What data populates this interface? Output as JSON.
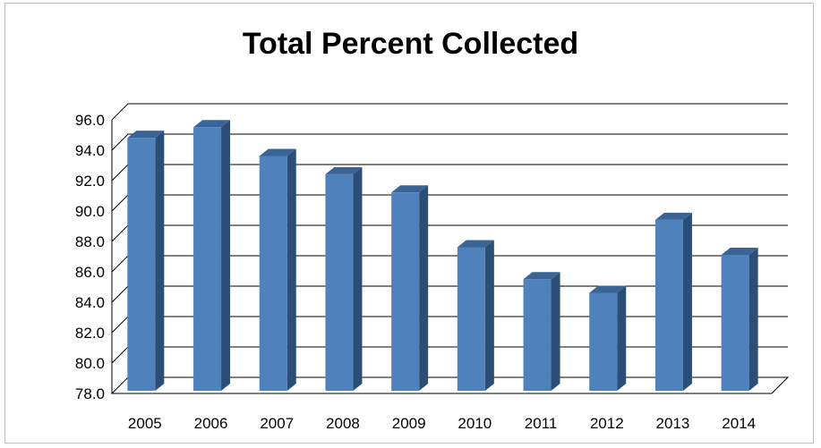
{
  "chart_data": {
    "type": "bar",
    "title": "Total Percent Collected",
    "xlabel": "",
    "ylabel": "",
    "categories": [
      "2005",
      "2006",
      "2007",
      "2008",
      "2009",
      "2010",
      "2011",
      "2012",
      "2013",
      "2014"
    ],
    "values": [
      94.7,
      95.4,
      93.5,
      92.3,
      91.1,
      87.5,
      85.4,
      84.5,
      89.3,
      87.0
    ],
    "ylim": [
      78.0,
      96.0
    ],
    "y_ticks": [
      "78.0",
      "80.0",
      "82.0",
      "84.0",
      "86.0",
      "88.0",
      "90.0",
      "92.0",
      "94.0",
      "96.0"
    ],
    "grid": true,
    "style": "3d-column",
    "colors": {
      "bar_front": "#4f81bd",
      "bar_side": "#2c4d75",
      "bar_top": "#3a6396",
      "grid": "#000000",
      "frame": "#bfbfbf"
    }
  }
}
